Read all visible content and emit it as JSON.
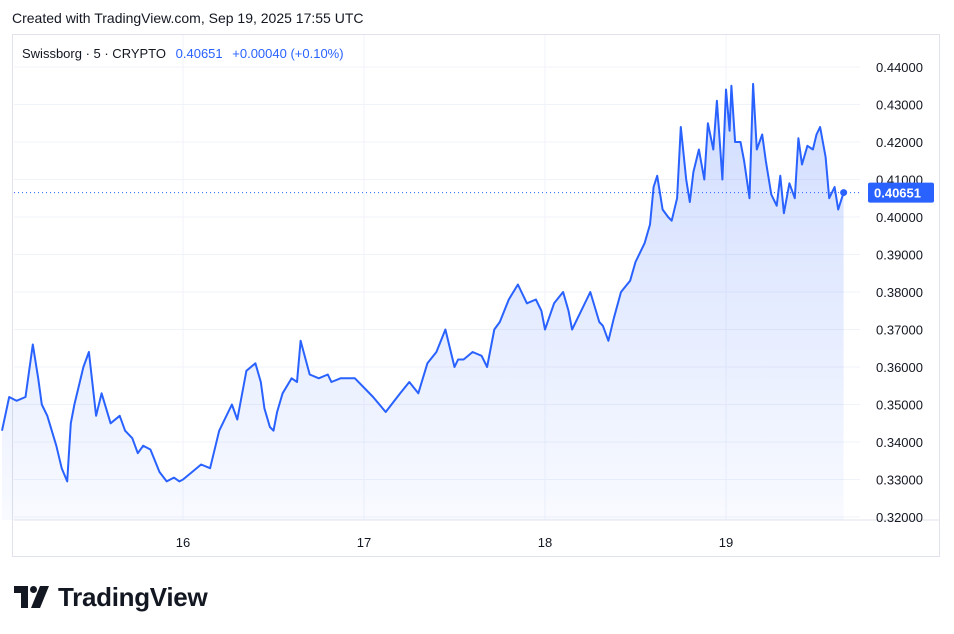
{
  "header": {
    "credit": "Created with TradingView.com, Sep 19, 2025 17:55 UTC"
  },
  "legend": {
    "symbol": "Swissborg · 5 · CRYPTO",
    "last": "0.40651",
    "change": "+0.00040 (+0.10%)"
  },
  "brand": {
    "name": "TradingView",
    "logo_icon": "tradingview-logo-icon"
  },
  "colors": {
    "line": "#2962ff",
    "price_tag": "#2962ff",
    "grid": "#f0f3fa"
  },
  "chart_data": {
    "type": "area",
    "title": "Swissborg · 5 · CRYPTO",
    "x_ticks": [
      "16",
      "17",
      "18",
      "19"
    ],
    "y_ticks": [
      "0.32000",
      "0.33000",
      "0.34000",
      "0.35000",
      "0.36000",
      "0.37000",
      "0.38000",
      "0.39000",
      "0.40000",
      "0.41000",
      "0.42000",
      "0.43000",
      "0.44000"
    ],
    "ylim": [
      0.317,
      0.4435
    ],
    "xlim_days": [
      15.0,
      19.88
    ],
    "last_price": "0.40651",
    "grid": true,
    "series": [
      {
        "x": [
          15.0,
          15.04,
          15.08,
          15.13,
          15.17,
          15.2,
          15.22,
          15.25,
          15.3,
          15.33,
          15.36,
          15.38,
          15.4,
          15.45,
          15.48,
          15.52,
          15.55,
          15.6,
          15.65,
          15.68,
          15.72,
          15.75,
          15.78,
          15.82,
          15.87,
          15.91,
          15.95,
          15.98,
          16.0,
          16.05,
          16.1,
          16.15,
          16.2,
          16.27,
          16.3,
          16.35,
          16.4,
          16.43,
          16.45,
          16.48,
          16.5,
          16.52,
          16.55,
          16.6,
          16.63,
          16.65,
          16.7,
          16.75,
          16.8,
          16.82,
          16.87,
          16.95,
          17.05,
          17.12,
          17.2,
          17.25,
          17.3,
          17.35,
          17.4,
          17.45,
          17.5,
          17.52,
          17.55,
          17.6,
          17.65,
          17.68,
          17.72,
          17.75,
          17.8,
          17.85,
          17.9,
          17.95,
          17.98,
          18.0,
          18.05,
          18.1,
          18.13,
          18.15,
          18.2,
          18.25,
          18.3,
          18.32,
          18.35,
          18.38,
          18.42,
          18.47,
          18.5,
          18.55,
          18.58,
          18.6,
          18.62,
          18.65,
          18.68,
          18.7,
          18.73,
          18.75,
          18.78,
          18.8,
          18.82,
          18.85,
          18.88,
          18.9,
          18.93,
          18.95,
          18.98,
          19.0,
          19.02,
          19.03,
          19.05,
          19.08,
          19.1,
          19.13,
          19.15,
          19.17,
          19.2,
          19.22,
          19.25,
          19.28,
          19.3,
          19.32,
          19.35,
          19.38,
          19.4,
          19.42,
          19.45,
          19.48,
          19.5,
          19.52,
          19.55,
          19.57,
          19.6,
          19.62,
          19.65
        ],
        "y": [
          0.343,
          0.352,
          0.351,
          0.352,
          0.366,
          0.357,
          0.35,
          0.347,
          0.339,
          0.333,
          0.3295,
          0.345,
          0.35,
          0.36,
          0.364,
          0.347,
          0.353,
          0.345,
          0.347,
          0.343,
          0.341,
          0.337,
          0.339,
          0.338,
          0.332,
          0.3295,
          0.3305,
          0.3295,
          0.33,
          0.332,
          0.334,
          0.333,
          0.343,
          0.35,
          0.346,
          0.359,
          0.361,
          0.356,
          0.349,
          0.344,
          0.343,
          0.348,
          0.353,
          0.357,
          0.356,
          0.367,
          0.358,
          0.357,
          0.358,
          0.356,
          0.357,
          0.357,
          0.352,
          0.348,
          0.353,
          0.356,
          0.353,
          0.361,
          0.364,
          0.37,
          0.36,
          0.362,
          0.362,
          0.364,
          0.363,
          0.36,
          0.37,
          0.372,
          0.378,
          0.382,
          0.377,
          0.378,
          0.375,
          0.37,
          0.377,
          0.38,
          0.375,
          0.37,
          0.375,
          0.38,
          0.372,
          0.371,
          0.367,
          0.373,
          0.38,
          0.383,
          0.388,
          0.393,
          0.398,
          0.408,
          0.411,
          0.402,
          0.4,
          0.399,
          0.405,
          0.424,
          0.41,
          0.404,
          0.412,
          0.418,
          0.41,
          0.425,
          0.418,
          0.431,
          0.41,
          0.434,
          0.423,
          0.435,
          0.42,
          0.42,
          0.415,
          0.405,
          0.4355,
          0.418,
          0.422,
          0.415,
          0.406,
          0.403,
          0.411,
          0.401,
          0.409,
          0.405,
          0.421,
          0.414,
          0.419,
          0.418,
          0.422,
          0.424,
          0.416,
          0.405,
          0.408,
          0.402,
          0.4065
        ]
      }
    ]
  }
}
